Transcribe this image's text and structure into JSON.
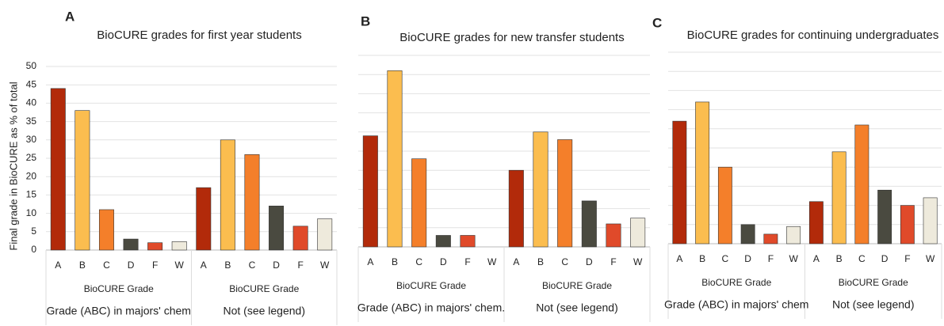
{
  "chart_data": [
    {
      "type": "bar",
      "panel": "A",
      "title": "BioCURE grades for first year students",
      "ylabel": "Final grade in BioCURE as % of total",
      "categories": [
        "A",
        "B",
        "C",
        "D",
        "F",
        "W"
      ],
      "colors": [
        "#b22a0a",
        "#fbbd4f",
        "#f47f2a",
        "#4a4a40",
        "#e04a2a",
        "#eeeadc"
      ],
      "groups": [
        {
          "subtitle": "BioCURE Grade",
          "name": "Grade (ABC) in majors' chem",
          "values": [
            44,
            38,
            11,
            3,
            2,
            2.3
          ]
        },
        {
          "subtitle": "BioCURE Grade",
          "name": "Not (see legend)",
          "values": [
            17,
            30,
            26,
            12,
            6.5,
            8.5
          ]
        }
      ],
      "ylim": [
        0,
        50
      ],
      "yticks": [
        0,
        5,
        10,
        15,
        20,
        25,
        30,
        35,
        40,
        45,
        50
      ],
      "ytick_labels": true,
      "grid": true
    },
    {
      "type": "bar",
      "panel": "B",
      "title": "BioCURE grades for new transfer students",
      "categories": [
        "A",
        "B",
        "C",
        "D",
        "F",
        "W"
      ],
      "colors": [
        "#b22a0a",
        "#fbbd4f",
        "#f47f2a",
        "#4a4a40",
        "#e04a2a",
        "#eeeadc"
      ],
      "groups": [
        {
          "subtitle": "BioCURE Grade",
          "name": "Grade (ABC) in majors' chem.",
          "values": [
            29,
            46,
            23,
            3,
            3,
            0
          ]
        },
        {
          "subtitle": "BioCURE Grade",
          "name": "Not (see legend)",
          "values": [
            20,
            30,
            28,
            12,
            6,
            7.5
          ]
        }
      ],
      "ylim": [
        0,
        50
      ],
      "yticks": [
        0,
        5,
        10,
        15,
        20,
        25,
        30,
        35,
        40,
        45,
        50
      ],
      "ytick_labels": false,
      "grid": true
    },
    {
      "type": "bar",
      "panel": "C",
      "title": "BioCURE grades for continuing undergraduates",
      "categories": [
        "A",
        "B",
        "C",
        "D",
        "F",
        "W"
      ],
      "colors": [
        "#b22a0a",
        "#fbbd4f",
        "#f47f2a",
        "#4a4a40",
        "#e04a2a",
        "#eeeadc"
      ],
      "groups": [
        {
          "subtitle": "BioCURE Grade",
          "name": "Grade (ABC) in majors' chem",
          "values": [
            32,
            37,
            20,
            5,
            2.5,
            4.5
          ]
        },
        {
          "subtitle": "BioCURE Grade",
          "name": "Not (see legend)",
          "values": [
            11,
            24,
            31,
            14,
            10,
            12
          ]
        }
      ],
      "ylim": [
        0,
        50
      ],
      "yticks": [
        0,
        5,
        10,
        15,
        20,
        25,
        30,
        35,
        40,
        45,
        50
      ],
      "ytick_labels": false,
      "grid": true
    }
  ]
}
